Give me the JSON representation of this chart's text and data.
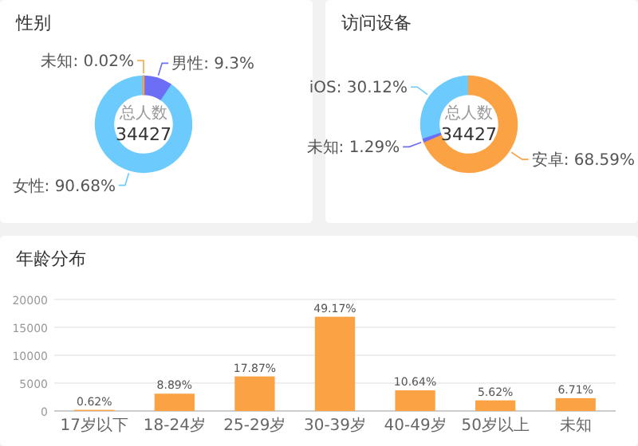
{
  "chart_data": [
    {
      "type": "donut",
      "title": "性别",
      "categories": [
        "未知: 0.02%",
        "男性: 9.3%",
        "女性: 90.68%"
      ],
      "values": [
        0.02,
        9.3,
        90.68
      ],
      "colors": [
        "#fba244",
        "#6c6ef5",
        "#6ccbfc"
      ],
      "annotations": [
        "总人数",
        "34427"
      ]
    },
    {
      "type": "donut",
      "title": "访问设备",
      "categories": [
        "安卓: 68.59%",
        "未知: 1.29%",
        "iOS: 30.12%"
      ],
      "values": [
        68.59,
        1.29,
        30.12
      ],
      "colors": [
        "#fba244",
        "#6c6ef5",
        "#6ccbfc"
      ],
      "annotations": [
        "总人数",
        "34427"
      ]
    },
    {
      "type": "bar",
      "title": "年龄分布",
      "categories": [
        "17岁以下",
        "18-24岁",
        "25-29岁",
        "30-39岁",
        "40-49岁",
        "50岁以上",
        "未知"
      ],
      "values": [
        200,
        3100,
        6200,
        16900,
        3700,
        1900,
        2300
      ],
      "color": "#fba244",
      "annotations": [
        {
          "text": "0.62%",
          "x": "17岁以下",
          "y": 200
        },
        {
          "text": "8.89%",
          "x": "18-24岁",
          "y": 3100
        },
        {
          "text": "17.87%",
          "x": "25-29岁",
          "y": 6200
        },
        {
          "text": "49.17%",
          "x": "30-39岁",
          "y": 16900
        },
        {
          "text": "10.64%",
          "x": "40-49岁",
          "y": 3700
        },
        {
          "text": "5.62%",
          "x": "50岁以上",
          "y": 1900
        },
        {
          "text": "6.71%",
          "x": "未知",
          "y": 2300
        }
      ],
      "ylim": [
        0,
        20000
      ],
      "yticks": [
        0,
        5000,
        10000,
        15000,
        20000
      ],
      "grid": "y"
    }
  ]
}
